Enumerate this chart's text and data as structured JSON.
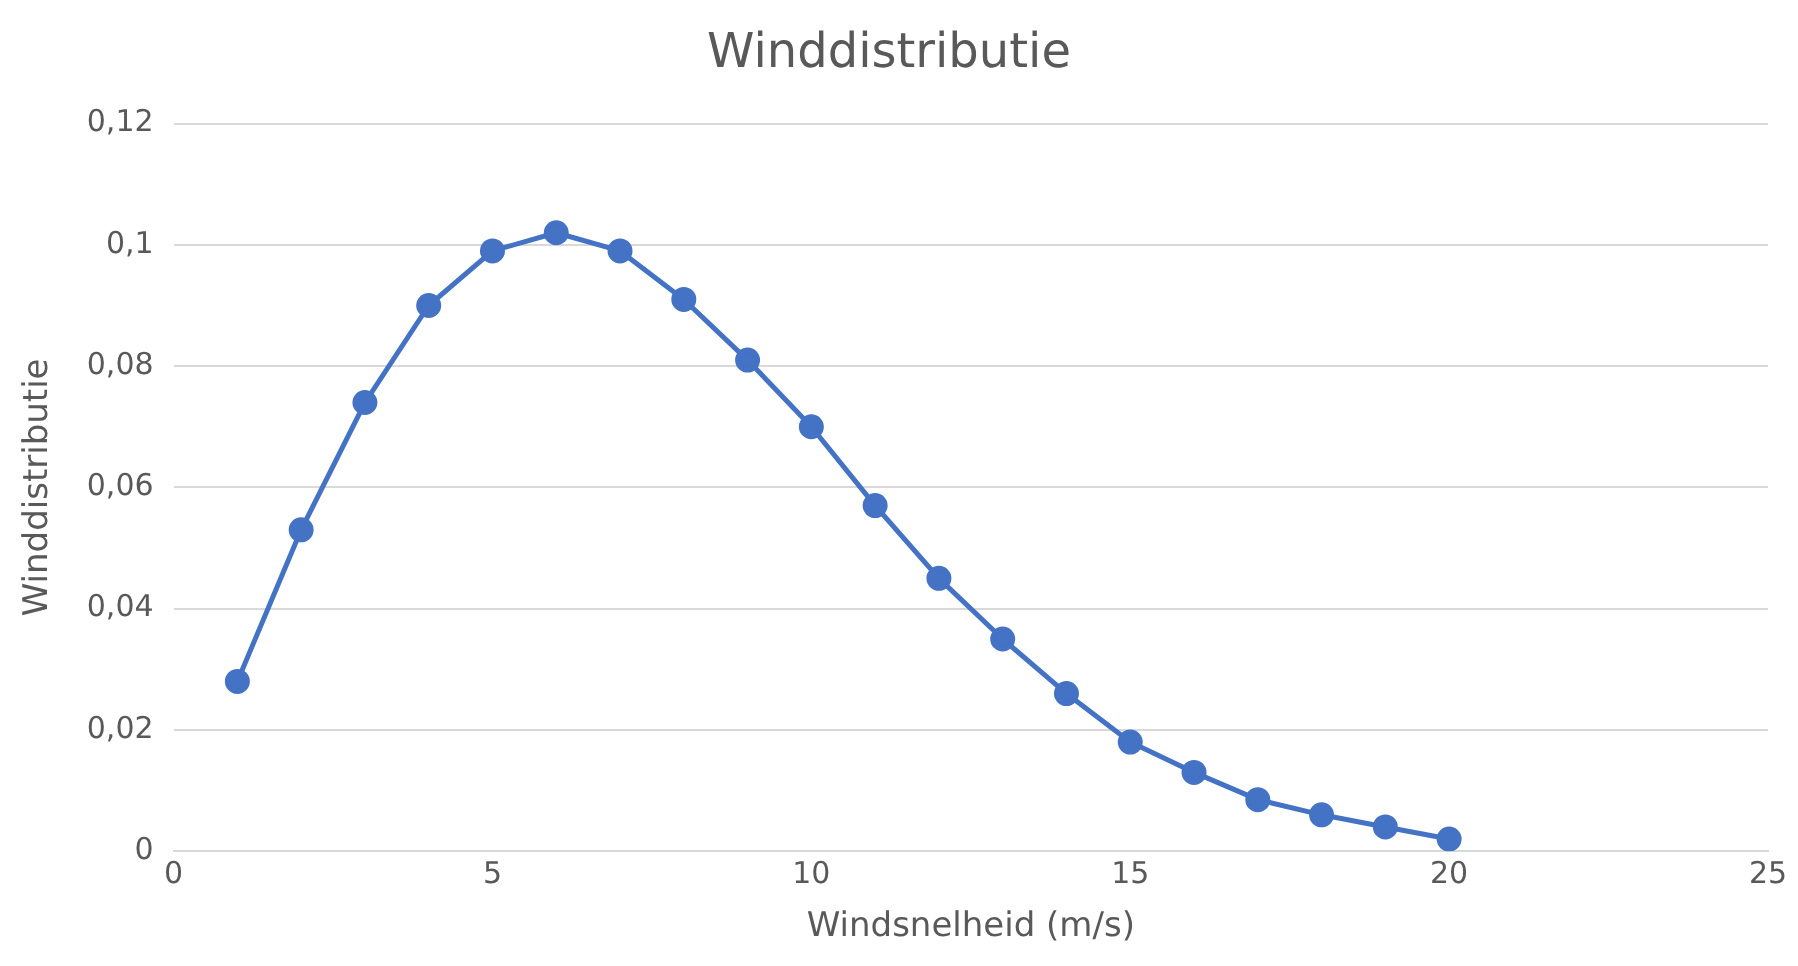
{
  "chart_data": {
    "type": "line",
    "title": "Winddistributie",
    "xlabel": "Windsnelheid (m/s)",
    "ylabel": "Winddistributie",
    "x": [
      1,
      2,
      3,
      4,
      5,
      6,
      7,
      8,
      9,
      10,
      11,
      12,
      13,
      14,
      15,
      16,
      17,
      18,
      19,
      20
    ],
    "series": [
      {
        "color": "#4472c4",
        "values": [
          0.028,
          0.053,
          0.074,
          0.09,
          0.099,
          0.102,
          0.099,
          0.091,
          0.081,
          0.07,
          0.057,
          0.045,
          0.035,
          0.026,
          0.018,
          0.013,
          0.0085,
          0.006,
          0.004,
          0.002
        ]
      }
    ],
    "xlim": [
      0,
      25
    ],
    "xticks": [
      0,
      5,
      10,
      15,
      20,
      25
    ],
    "ylim": [
      0,
      0.12
    ],
    "yticks": [
      0,
      {
        "value": 0.02,
        "label": "0,02"
      },
      {
        "value": 0.04,
        "label": "0,04"
      },
      {
        "value": 0.06,
        "label": "0,06"
      },
      {
        "value": 0.08,
        "label": "0,08"
      },
      {
        "value": 0.1,
        "label": "0,1"
      },
      {
        "value": 0.12,
        "label": "0,12"
      }
    ],
    "grid": "y",
    "legend": false,
    "marker": "circle",
    "line_style": "solid"
  }
}
